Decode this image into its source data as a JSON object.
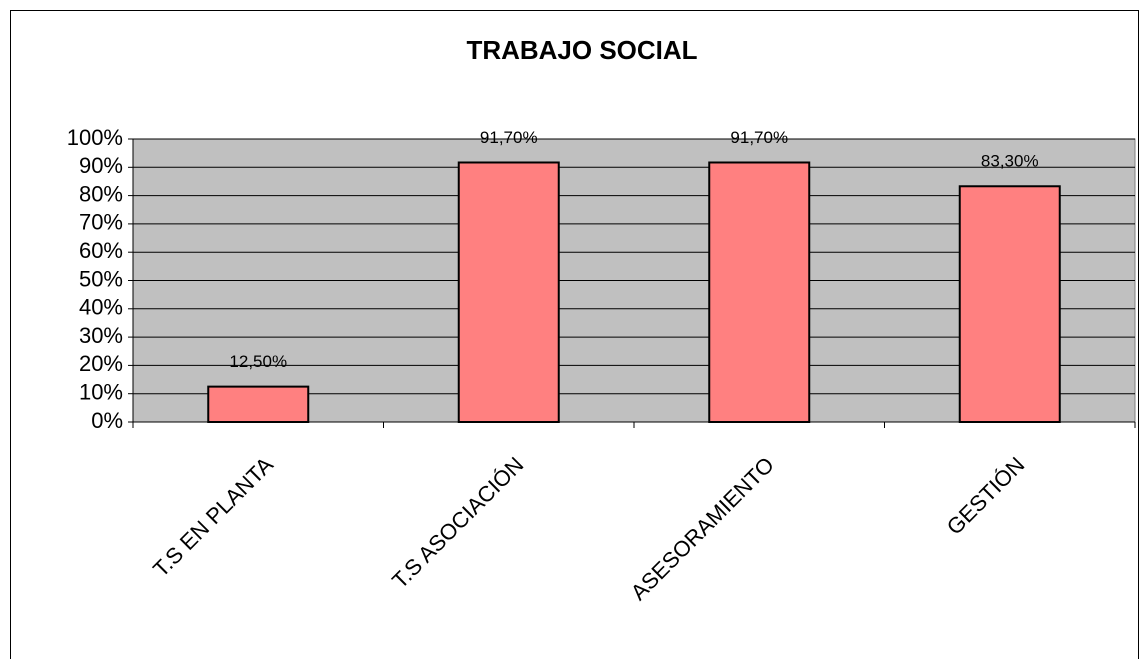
{
  "chart_data": {
    "type": "bar",
    "title": "TRABAJO SOCIAL",
    "categories": [
      "T.S EN PLANTA",
      "T.S ASOCIACIÓN",
      "ASESORAMIENTO",
      "GESTIÓN"
    ],
    "values": [
      12.5,
      91.7,
      91.7,
      83.3
    ],
    "value_labels": [
      "12,50%",
      "91,70%",
      "91,70%",
      "83,30%"
    ],
    "color": "#ff8080",
    "ylim": [
      0,
      100
    ],
    "yticks": [
      {
        "value": 0,
        "label": "0%"
      },
      {
        "value": 10,
        "label": "10%"
      },
      {
        "value": 20,
        "label": "20%"
      },
      {
        "value": 30,
        "label": "30%"
      },
      {
        "value": 40,
        "label": "40%"
      },
      {
        "value": 50,
        "label": "50%"
      },
      {
        "value": 60,
        "label": "60%"
      },
      {
        "value": 70,
        "label": "70%"
      },
      {
        "value": 80,
        "label": "80%"
      },
      {
        "value": 90,
        "label": "90%"
      },
      {
        "value": 100,
        "label": "100%"
      }
    ],
    "grid": true
  }
}
